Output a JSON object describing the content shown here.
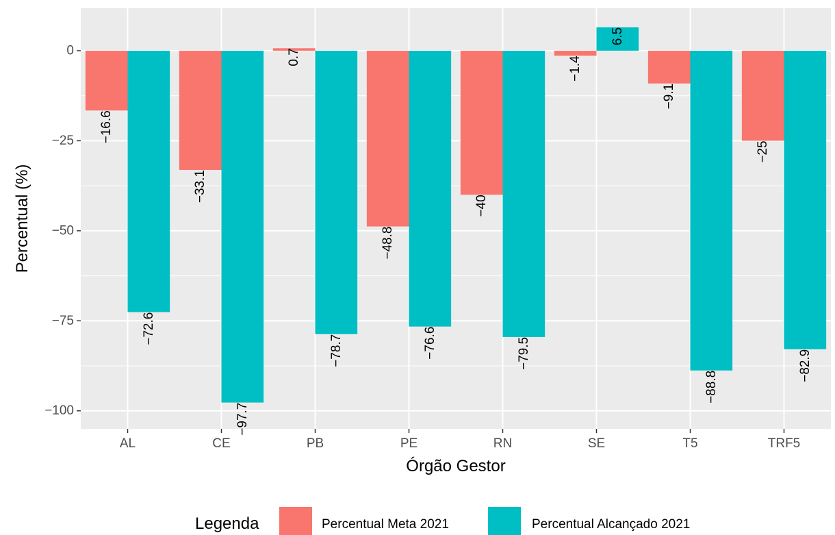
{
  "chart_data": {
    "type": "bar",
    "categories": [
      "AL",
      "CE",
      "PB",
      "PE",
      "RN",
      "SE",
      "T5",
      "TRF5"
    ],
    "series": [
      {
        "name": "Percentual Meta 2021",
        "values": [
          -16.6,
          -33.1,
          0.7,
          -48.8,
          -40,
          -1.4,
          -9.1,
          -25
        ],
        "labels": [
          "−16.6",
          "−33.1",
          "0.7",
          "−48.8",
          "−40",
          "−1.4",
          "−9.1",
          "−25"
        ],
        "color": "#F8766D"
      },
      {
        "name": "Percentual Alcançado 2021",
        "values": [
          -72.6,
          -97.7,
          -78.7,
          -76.6,
          -79.5,
          6.5,
          -88.8,
          -82.9
        ],
        "labels": [
          "−72.6",
          "−97.7",
          "−78.7",
          "−76.6",
          "−79.5",
          "6.5",
          "−88.8",
          "−82.9"
        ],
        "color": "#00BFC4"
      }
    ],
    "title": "",
    "xlabel": "Órgão Gestor",
    "ylabel": "Percentual (%)",
    "ylim": [
      -105,
      11.8
    ],
    "yticks": [
      0,
      -25,
      -50,
      -75,
      -100
    ],
    "ytick_labels": [
      "0",
      "−25",
      "−50",
      "−75",
      "−100"
    ],
    "grid": true,
    "panel_color": "#EBEBEB",
    "legend": {
      "title": "Legenda",
      "placement": "bottom"
    }
  }
}
